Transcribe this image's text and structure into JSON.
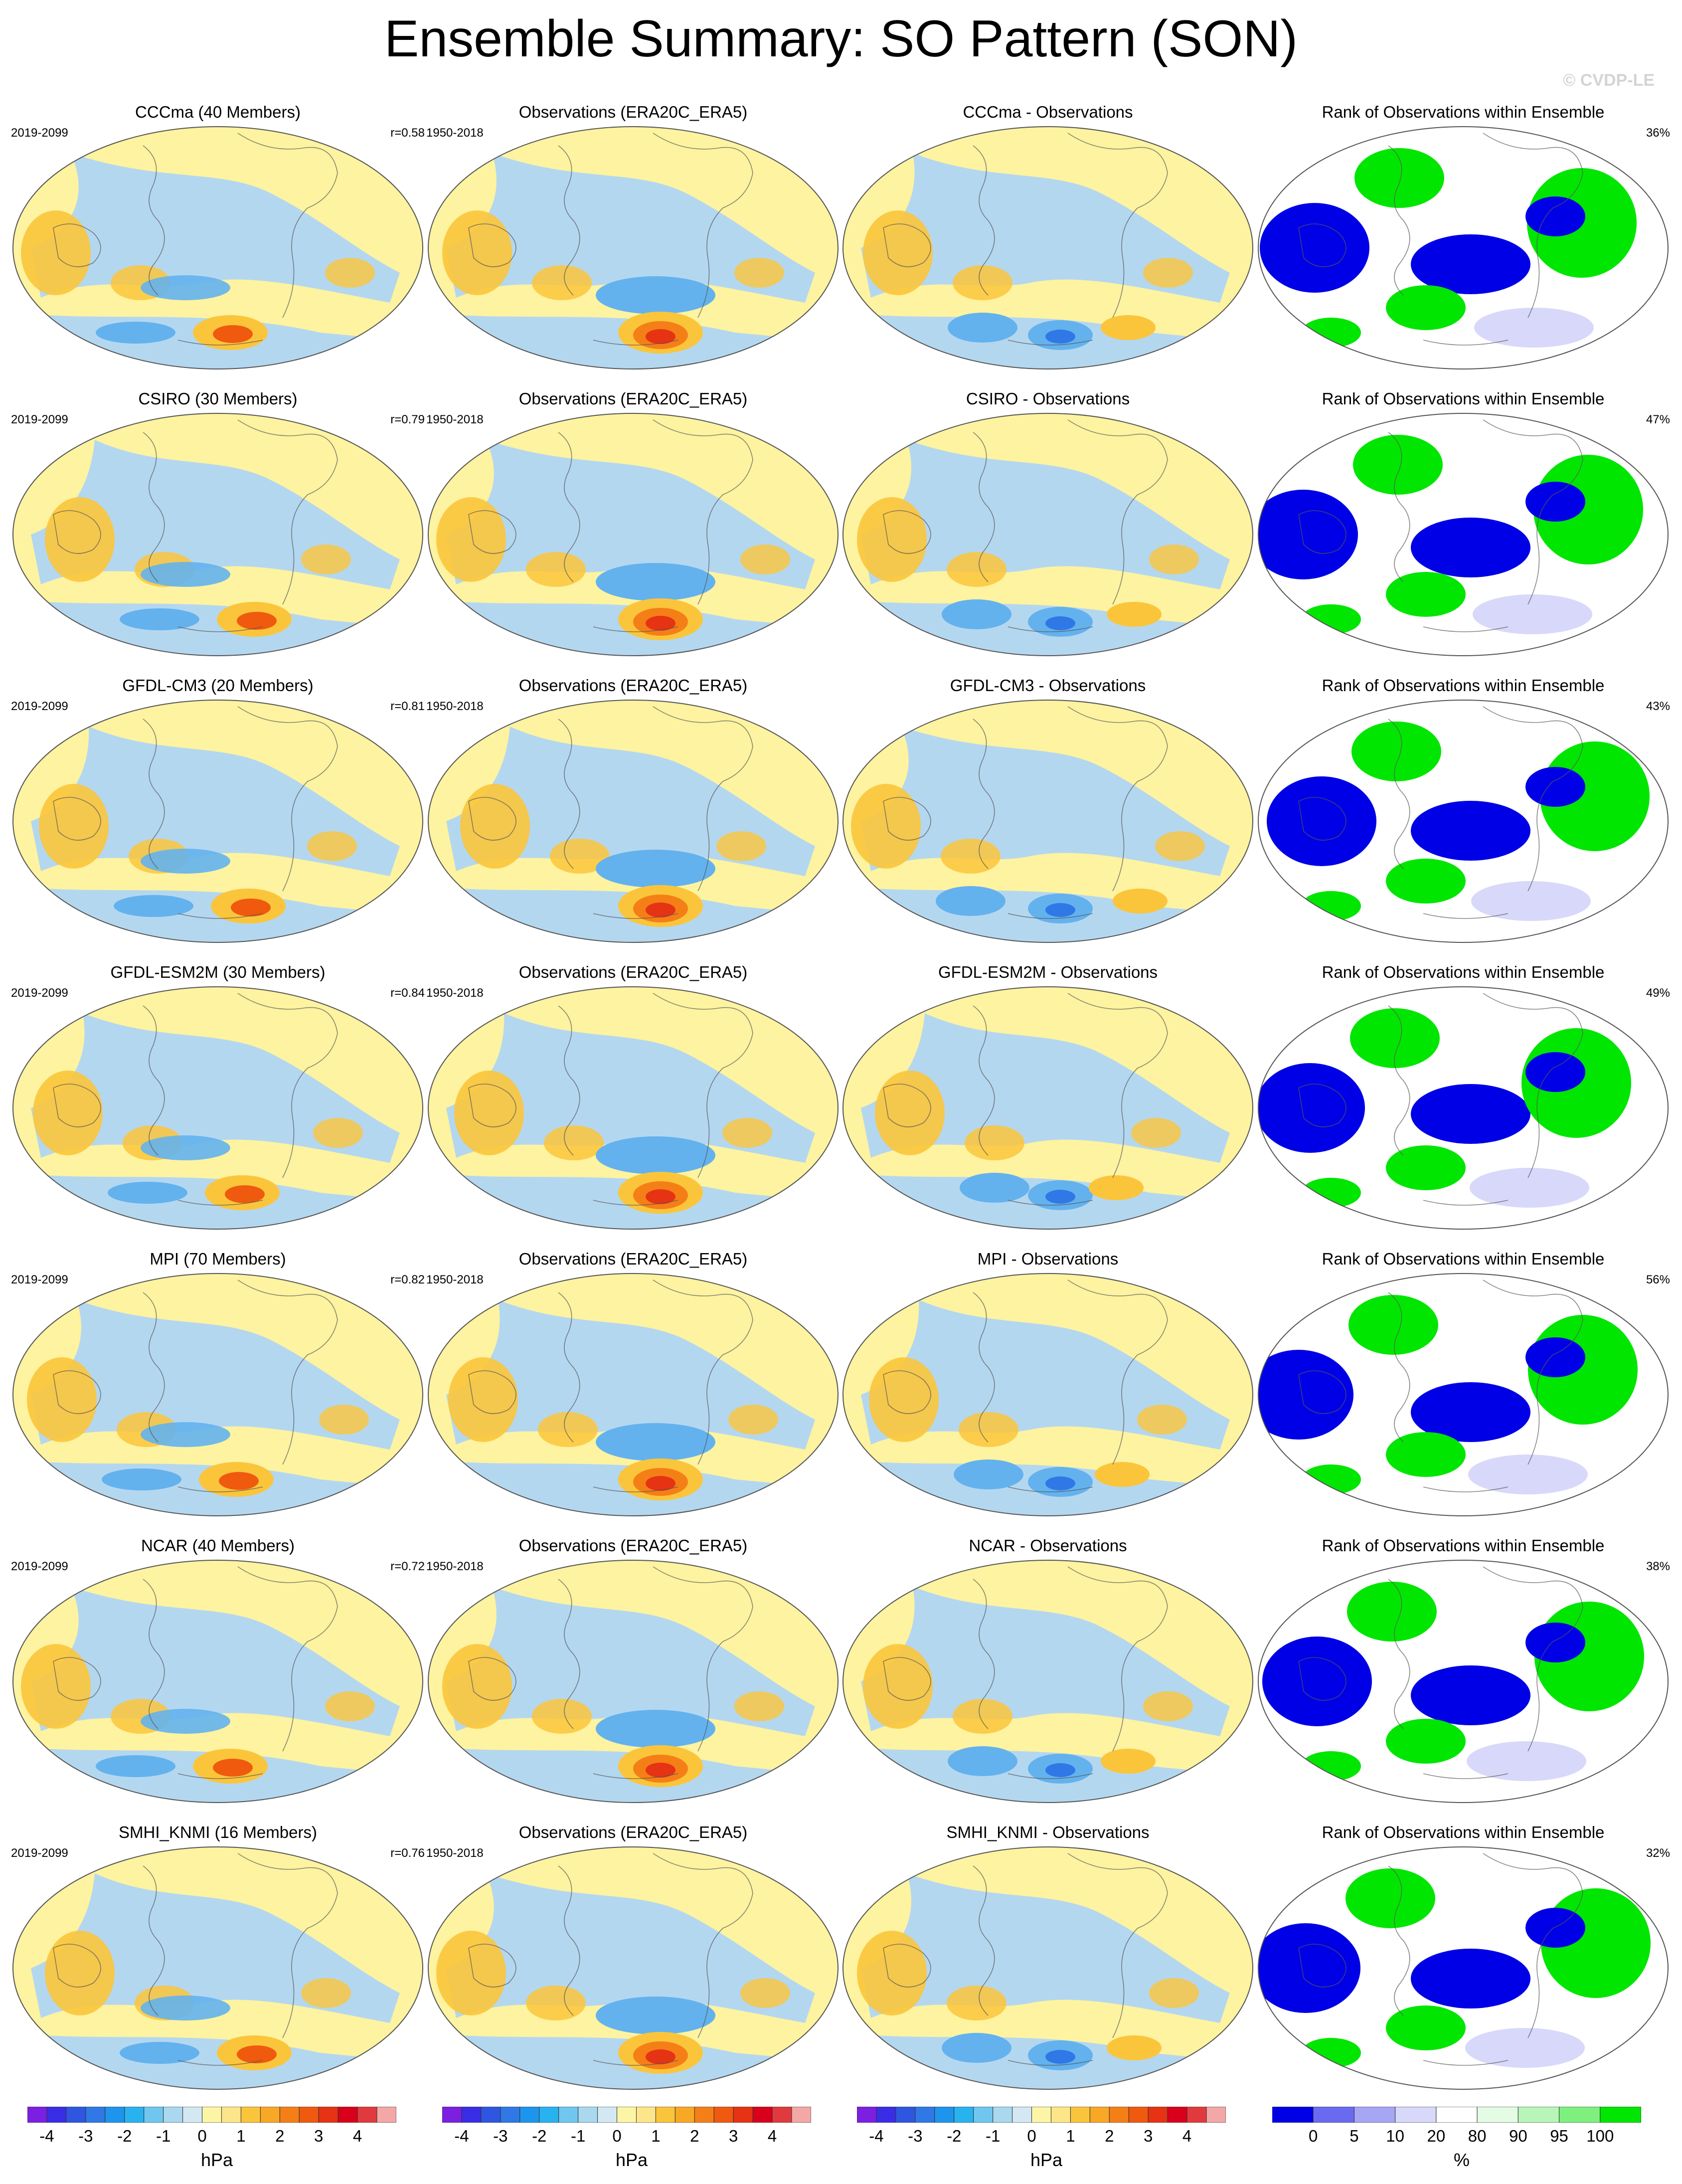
{
  "title": "Ensemble Summary: SO Pattern (SON)",
  "copyright": "© CVDP-LE",
  "columns": {
    "obs_title": "Observations (ERA20C_ERA5)",
    "obs_period": "1950-2018",
    "model_period": "2019-2099",
    "rank_title": "Rank of Observations within Ensemble"
  },
  "rows": [
    {
      "model_title": "CCCma (40 Members)",
      "r": "r=0.58",
      "diff_title": "CCCma - Observations",
      "rank_pct": "36%"
    },
    {
      "model_title": "CSIRO (30 Members)",
      "r": "r=0.79",
      "diff_title": "CSIRO - Observations",
      "rank_pct": "47%"
    },
    {
      "model_title": "GFDL-CM3 (20 Members)",
      "r": "r=0.81",
      "diff_title": "GFDL-CM3 - Observations",
      "rank_pct": "43%"
    },
    {
      "model_title": "GFDL-ESM2M (30 Members)",
      "r": "r=0.84",
      "diff_title": "GFDL-ESM2M - Observations",
      "rank_pct": "49%"
    },
    {
      "model_title": "MPI (70 Members)",
      "r": "r=0.82",
      "diff_title": "MPI - Observations",
      "rank_pct": "56%"
    },
    {
      "model_title": "NCAR (40 Members)",
      "r": "r=0.72",
      "diff_title": "NCAR - Observations",
      "rank_pct": "38%"
    },
    {
      "model_title": "SMHI_KNMI (16 Members)",
      "r": "r=0.76",
      "diff_title": "SMHI_KNMI - Observations",
      "rank_pct": "32%"
    }
  ],
  "colorbar_hpa": {
    "unit": "hPa",
    "ticks": [
      "-4",
      "-3",
      "-2",
      "-1",
      "0",
      "1",
      "2",
      "3",
      "4"
    ],
    "colors": [
      "#7b1fe0",
      "#3a2de6",
      "#2f56e0",
      "#2f78e6",
      "#1e95ec",
      "#28b3f0",
      "#6fc7ef",
      "#a9d8ef",
      "#d3e8f3",
      "#fdf5a6",
      "#fde68a",
      "#fbc53b",
      "#f9a825",
      "#f57f17",
      "#ef5a0f",
      "#e53314",
      "#d9001b",
      "#e03a3e",
      "#f3a7a7"
    ]
  },
  "colorbar_rank": {
    "unit": "%",
    "ticks": [
      "0",
      "5",
      "10",
      "20",
      "80",
      "90",
      "95",
      "100"
    ],
    "colors": [
      "#0000e6",
      "#6a6af0",
      "#a6a6f5",
      "#d8d8fa",
      "#ffffff",
      "#e4fbe4",
      "#b8f5b8",
      "#7ef07e",
      "#00e600"
    ]
  },
  "map_colors": {
    "light_blue": "#b4d7f0",
    "pale_yellow": "#fdf3a0",
    "orange": "#fbc53b",
    "mid_blue": "#63b2ee",
    "deep_blue": "#2f78e6",
    "red": "#e53314",
    "rank_blue": "#0000e6",
    "rank_green": "#00e600",
    "rank_lavender": "#d8d8fa"
  }
}
